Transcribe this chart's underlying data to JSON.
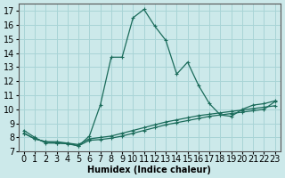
{
  "xlabel": "Humidex (Indice chaleur)",
  "xlim": [
    -0.5,
    23.5
  ],
  "ylim": [
    7,
    17.5
  ],
  "xticks": [
    0,
    1,
    2,
    3,
    4,
    5,
    6,
    7,
    8,
    9,
    10,
    11,
    12,
    13,
    14,
    15,
    16,
    17,
    18,
    19,
    20,
    21,
    22,
    23
  ],
  "yticks": [
    7,
    8,
    9,
    10,
    11,
    12,
    13,
    14,
    15,
    16,
    17
  ],
  "background_color": "#cce9ea",
  "grid_color": "#a8d4d6",
  "line_color": "#1a6b5a",
  "line1_x": [
    0,
    1,
    2,
    3,
    4,
    5,
    6,
    7,
    8,
    9,
    10,
    11,
    12,
    13,
    14,
    15,
    16,
    17,
    18,
    19,
    20,
    21,
    22,
    23
  ],
  "line1_y": [
    8.5,
    8.0,
    7.6,
    7.6,
    7.6,
    7.4,
    8.1,
    10.3,
    13.7,
    13.7,
    16.5,
    17.1,
    15.9,
    14.9,
    12.5,
    13.35,
    11.7,
    10.4,
    9.6,
    9.5,
    10.0,
    10.3,
    10.4,
    10.6
  ],
  "line2_x": [
    0,
    1,
    2,
    3,
    4,
    5,
    6,
    7,
    8,
    9,
    10,
    11,
    12,
    13,
    14,
    15,
    16,
    17,
    18,
    19,
    20,
    21,
    22,
    23
  ],
  "line2_y": [
    8.3,
    7.9,
    7.7,
    7.7,
    7.6,
    7.5,
    7.9,
    8.0,
    8.1,
    8.3,
    8.5,
    8.7,
    8.9,
    9.1,
    9.25,
    9.4,
    9.55,
    9.65,
    9.75,
    9.85,
    9.95,
    10.05,
    10.15,
    10.25
  ],
  "line3_x": [
    0,
    1,
    2,
    3,
    4,
    5,
    6,
    7,
    8,
    9,
    10,
    11,
    12,
    13,
    14,
    15,
    16,
    17,
    18,
    19,
    20,
    21,
    22,
    23
  ],
  "line3_y": [
    8.3,
    7.9,
    7.7,
    7.6,
    7.55,
    7.4,
    7.8,
    7.85,
    7.95,
    8.1,
    8.3,
    8.5,
    8.7,
    8.9,
    9.05,
    9.2,
    9.35,
    9.5,
    9.6,
    9.7,
    9.8,
    9.9,
    10.0,
    10.55
  ],
  "marker_size": 3,
  "font_size": 7
}
